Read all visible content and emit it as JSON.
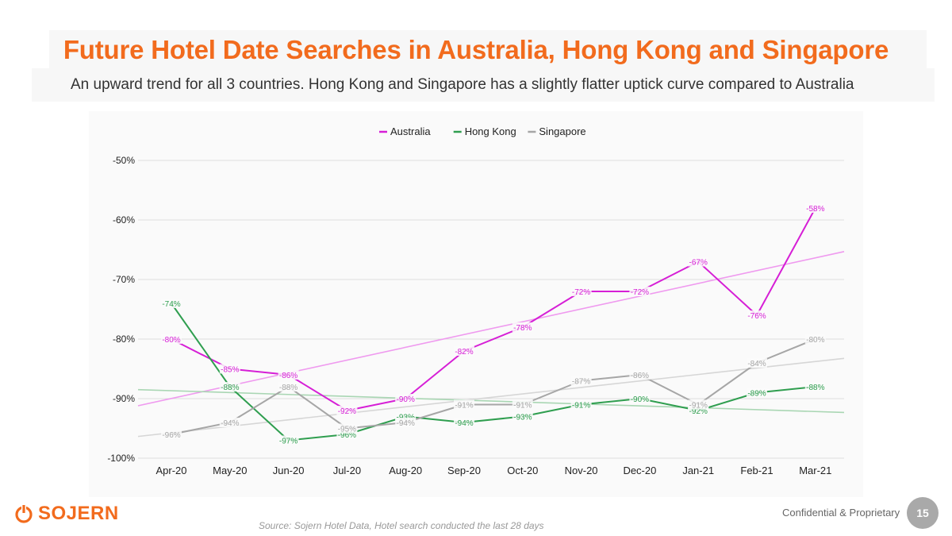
{
  "header": {
    "title": "Future Hotel Date Searches in Australia, Hong Kong and Singapore",
    "subtitle": "An upward trend for all 3 countries. Hong Kong and Singapore has a slightly flatter uptick curve compared to Australia"
  },
  "footer": {
    "logo_text": "SOJERN",
    "source": "Source: Sojern Hotel  Data, Hotel search conducted the last 28 days",
    "confidential": "Confidential & Proprietary",
    "page_number": "15"
  },
  "colors": {
    "accent": "#f26b1d",
    "Australia": "#d61fd6",
    "Hong Kong": "#2f9e4f",
    "Singapore": "#a6a6a6"
  },
  "chart_data": {
    "type": "line",
    "categories": [
      "Apr-20",
      "May-20",
      "Jun-20",
      "Jul-20",
      "Aug-20",
      "Sep-20",
      "Oct-20",
      "Nov-20",
      "Dec-20",
      "Jan-21",
      "Feb-21",
      "Mar-21"
    ],
    "series": [
      {
        "name": "Australia",
        "values": [
          -80,
          -85,
          -86,
          -92,
          -90,
          -82,
          -78,
          -72,
          -72,
          -67,
          -76,
          -58
        ]
      },
      {
        "name": "Hong Kong",
        "values": [
          -74,
          -88,
          -97,
          -96,
          -93,
          -94,
          -93,
          -91,
          -90,
          -92,
          -89,
          -88
        ]
      },
      {
        "name": "Singapore",
        "values": [
          -96,
          -94,
          -88,
          -95,
          -94,
          -91,
          -91,
          -87,
          -86,
          -91,
          -84,
          -80
        ]
      }
    ],
    "y_ticks": [
      "-50%",
      "-60%",
      "-70%",
      "-80%",
      "-90%",
      "-100%"
    ],
    "ylim": [
      -100,
      -50
    ],
    "trendlines": true,
    "data_labels": true,
    "legend_position": "top",
    "grid": true
  }
}
